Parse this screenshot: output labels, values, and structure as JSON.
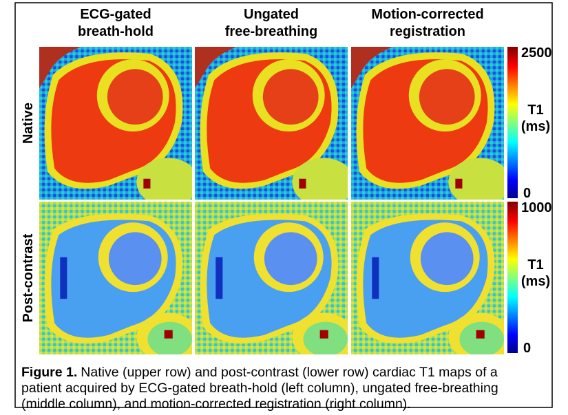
{
  "figure": {
    "columns": [
      {
        "lines": [
          "ECG-gated",
          "breath-hold"
        ]
      },
      {
        "lines": [
          "Ungated",
          "free-breathing"
        ]
      },
      {
        "lines": [
          "Motion-corrected",
          "registration"
        ]
      }
    ],
    "rows": [
      {
        "label": "Native",
        "colorbar": {
          "max": 2500,
          "min": 0,
          "title_lines": [
            "T1",
            "(ms)"
          ]
        }
      },
      {
        "label": "Post-contrast",
        "colorbar": {
          "max": 1000,
          "min": 0,
          "title_lines": [
            "T1",
            "(ms)"
          ]
        }
      }
    ],
    "caption": {
      "label": "Figure 1.",
      "lines": [
        "Native (upper row) and post-contrast (lower row) cardiac T1 maps of a",
        "patient acquired by ECG-gated breath-hold (left column), ungated free-breathing",
        "(middle column), and motion-corrected registration (right column)."
      ]
    }
  }
}
